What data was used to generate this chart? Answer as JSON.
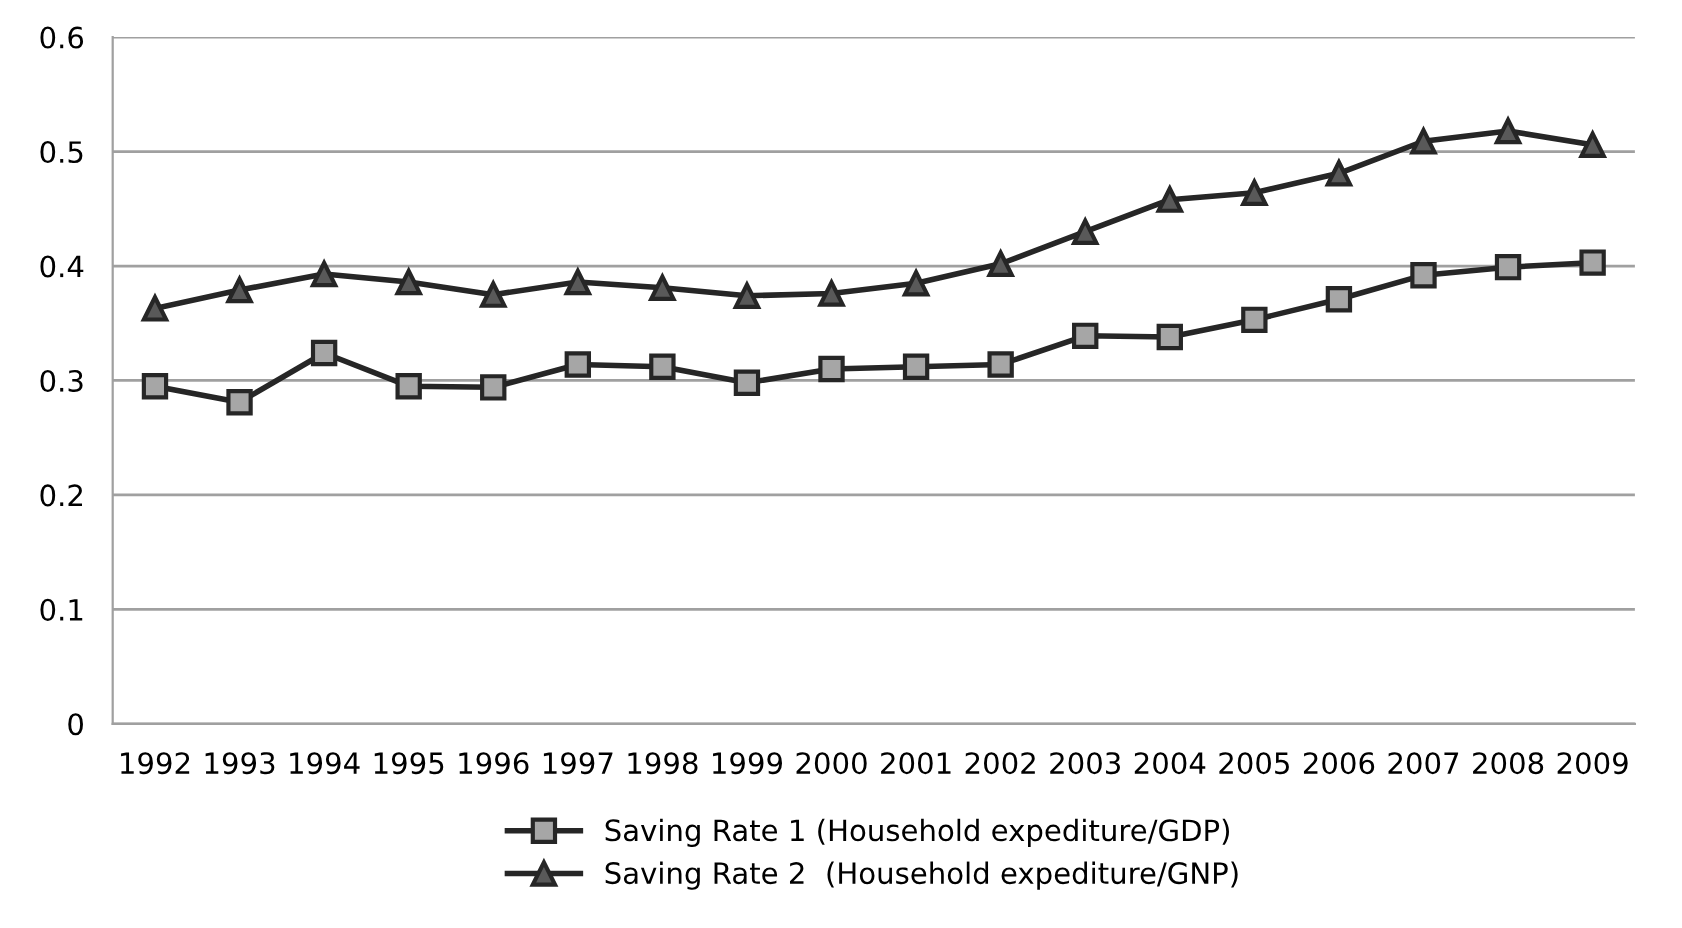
{
  "chart_data": {
    "type": "line",
    "categories": [
      "1992",
      "1993",
      "1994",
      "1995",
      "1996",
      "1997",
      "1998",
      "1999",
      "2000",
      "2001",
      "2002",
      "2003",
      "2004",
      "2005",
      "2006",
      "2007",
      "2008",
      "2009"
    ],
    "series": [
      {
        "name": "Saving Rate 1 (Household expediture/GDP)",
        "color": "#262626",
        "marker": "square",
        "values": [
          0.295,
          0.281,
          0.324,
          0.295,
          0.294,
          0.314,
          0.312,
          0.298,
          0.31,
          0.312,
          0.314,
          0.339,
          0.338,
          0.353,
          0.371,
          0.392,
          0.399,
          0.403
        ]
      },
      {
        "name": "Saving Rate 2  (Household expediture/GNP)",
        "color": "#262626",
        "marker": "triangle",
        "values": [
          0.363,
          0.379,
          0.393,
          0.386,
          0.375,
          0.386,
          0.381,
          0.374,
          0.376,
          0.385,
          0.402,
          0.43,
          0.458,
          0.464,
          0.481,
          0.509,
          0.518,
          0.506
        ]
      }
    ],
    "ylim": [
      0,
      0.6
    ],
    "yticks": [
      0,
      0.1,
      0.2,
      0.3,
      0.4,
      0.5,
      0.6
    ],
    "grid": "y",
    "legend": "bottom",
    "line_style": "solid"
  }
}
